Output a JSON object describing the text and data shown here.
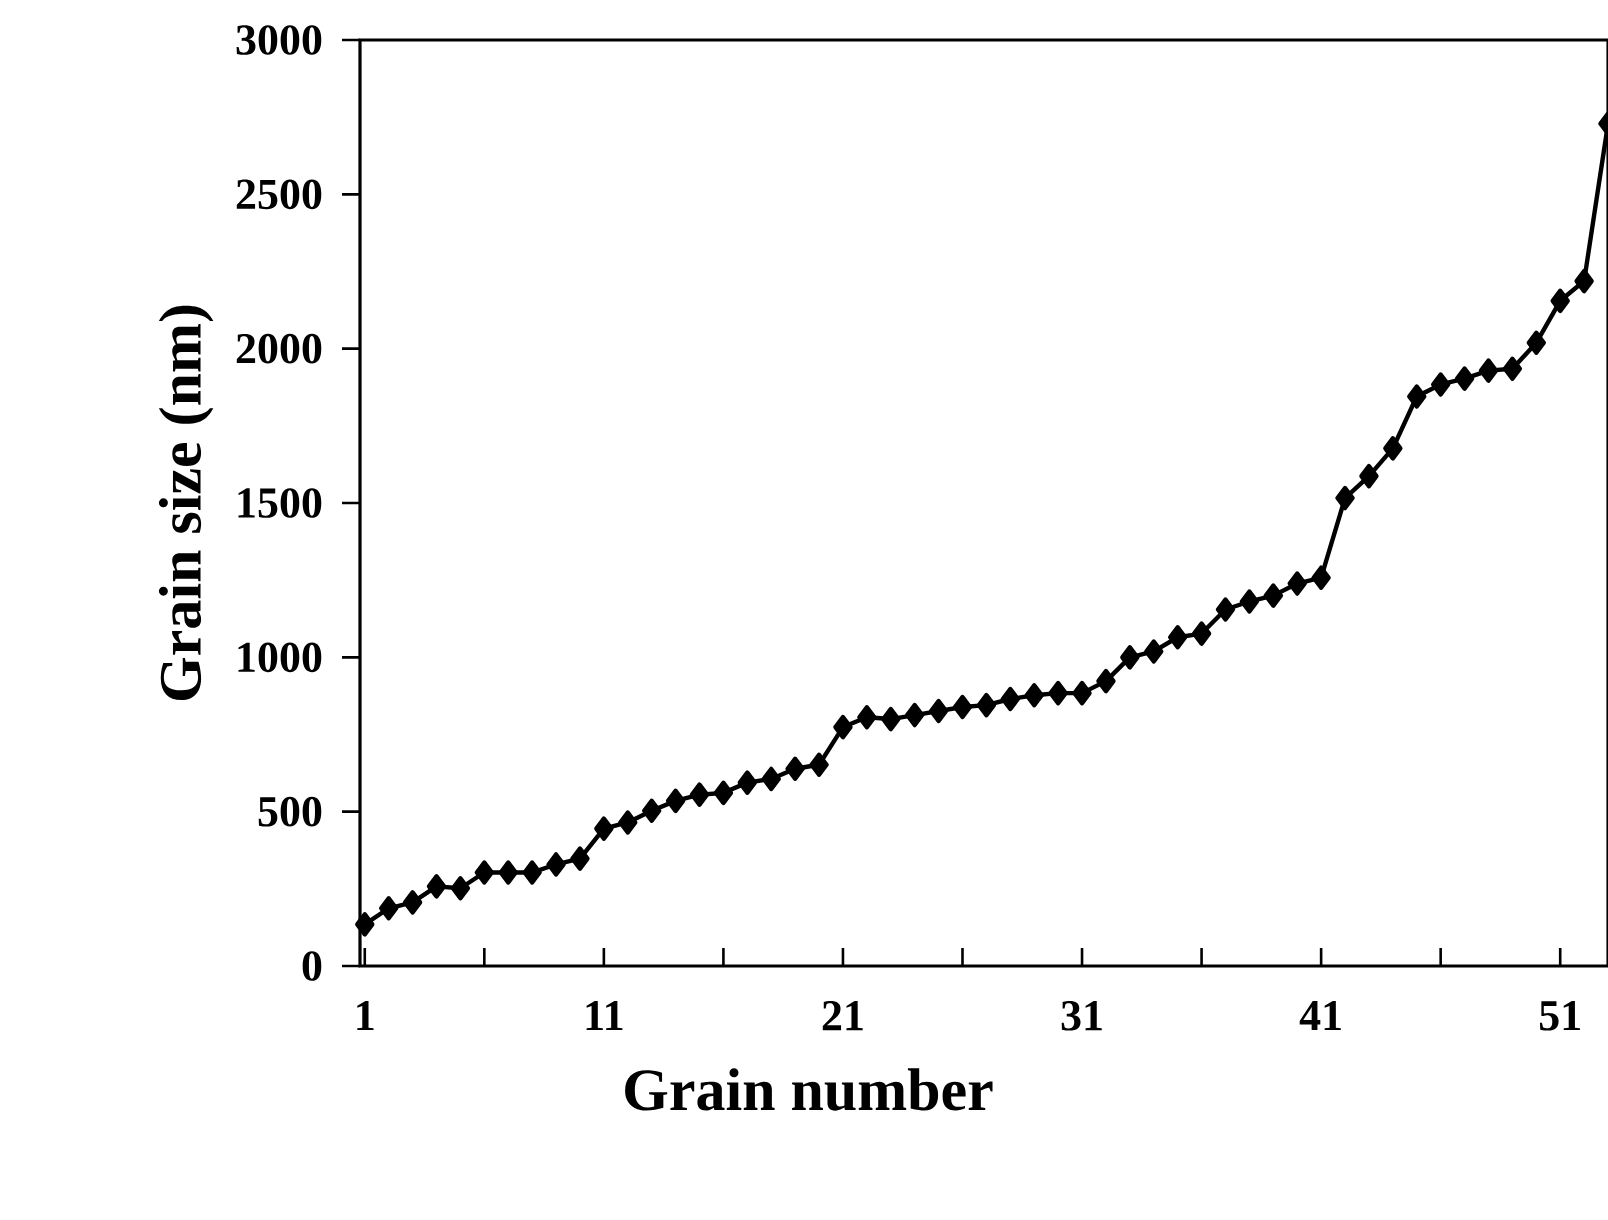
{
  "chart_data": {
    "type": "line",
    "xlabel": "Grain number",
    "ylabel": "Grain size (nm)",
    "x": [
      1,
      2,
      3,
      4,
      5,
      6,
      7,
      8,
      9,
      10,
      11,
      12,
      13,
      14,
      15,
      16,
      17,
      18,
      19,
      20,
      21,
      22,
      23,
      24,
      25,
      26,
      27,
      28,
      29,
      30,
      31,
      32,
      33,
      34,
      35,
      36,
      37,
      38,
      39,
      40,
      41,
      42,
      43,
      44,
      45,
      46,
      47,
      48,
      49,
      50,
      51,
      52,
      53
    ],
    "series": [
      {
        "color": "#000000",
        "values": [
          135,
          187,
          206,
          258,
          252,
          303,
          303,
          303,
          329,
          348,
          445,
          465,
          503,
          535,
          555,
          561,
          594,
          606,
          639,
          652,
          774,
          806,
          800,
          813,
          826,
          839,
          845,
          865,
          877,
          884,
          884,
          923,
          1000,
          1019,
          1065,
          1077,
          1155,
          1181,
          1200,
          1239,
          1258,
          1516,
          1587,
          1677,
          1845,
          1884,
          1903,
          1929,
          1935,
          2019,
          2155,
          2219,
          2729
        ]
      }
    ],
    "xlim": [
      0.8,
      53
    ],
    "xticks": [
      1,
      {
        "value": 6,
        "label": null
      },
      11,
      {
        "value": 16,
        "label": null
      },
      21,
      {
        "value": 26,
        "label": null
      },
      31,
      {
        "value": 36,
        "label": null
      },
      41,
      {
        "value": 46,
        "label": null
      },
      51
    ],
    "ylim": [
      0,
      3000
    ],
    "yticks": [
      0,
      500,
      1000,
      1500,
      2000,
      2500,
      3000
    ],
    "marker": "diamond",
    "line_style": "solid",
    "grid": false
  }
}
